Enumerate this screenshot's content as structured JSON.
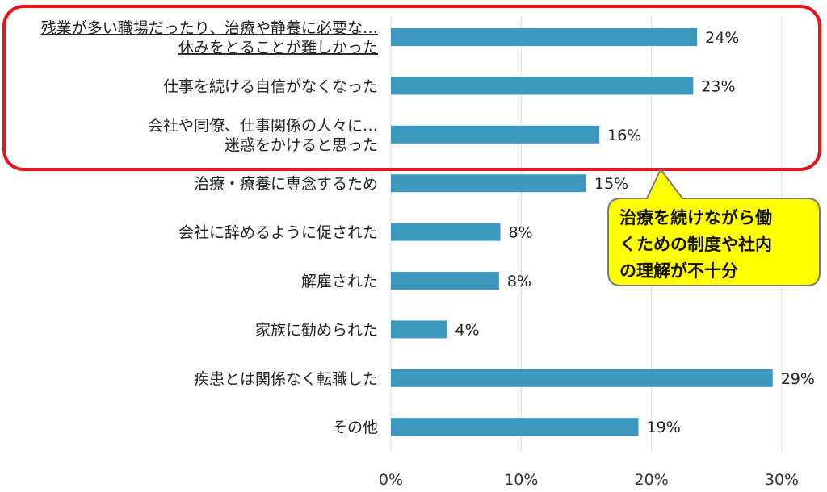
{
  "chart_data": {
    "type": "bar",
    "orientation": "horizontal",
    "categories": [
      [
        "残業が多い職場だったり、治療や静養に必要な…",
        "休みをとることが難しかった"
      ],
      [
        "仕事を続ける自信がなくなった"
      ],
      [
        "会社や同僚、仕事関係の人々に…",
        "迷惑をかけると思った"
      ],
      [
        "治療・療養に専念するため"
      ],
      [
        "会社に辞めるように促された"
      ],
      [
        "解雇された"
      ],
      [
        "家族に勧められた"
      ],
      [
        "疾患とは関係なく転職した"
      ],
      [
        "その他"
      ]
    ],
    "values": [
      23.5,
      23.2,
      16.0,
      15.0,
      8.4,
      8.3,
      4.3,
      29.3,
      19.0
    ],
    "value_labels": [
      "24%",
      "23%",
      "16%",
      "15%",
      "8%",
      "8%",
      "4%",
      "29%",
      "19%"
    ],
    "xlim": [
      0,
      30
    ],
    "x_ticks": [
      0,
      10,
      20,
      30
    ],
    "x_tick_labels": [
      "0%",
      "10%",
      "20%",
      "30%"
    ],
    "grid": "vertical",
    "bar_color": "#3d97bf",
    "highlight": {
      "rows": [
        0,
        1,
        2
      ],
      "border_color": "#e8141b"
    },
    "callout": {
      "lines": [
        "治療を続けながら働",
        "くための制度や社内",
        "の理解が不十分"
      ],
      "fill_color": "#ffff00",
      "border_color": "#7a7a7a"
    }
  }
}
